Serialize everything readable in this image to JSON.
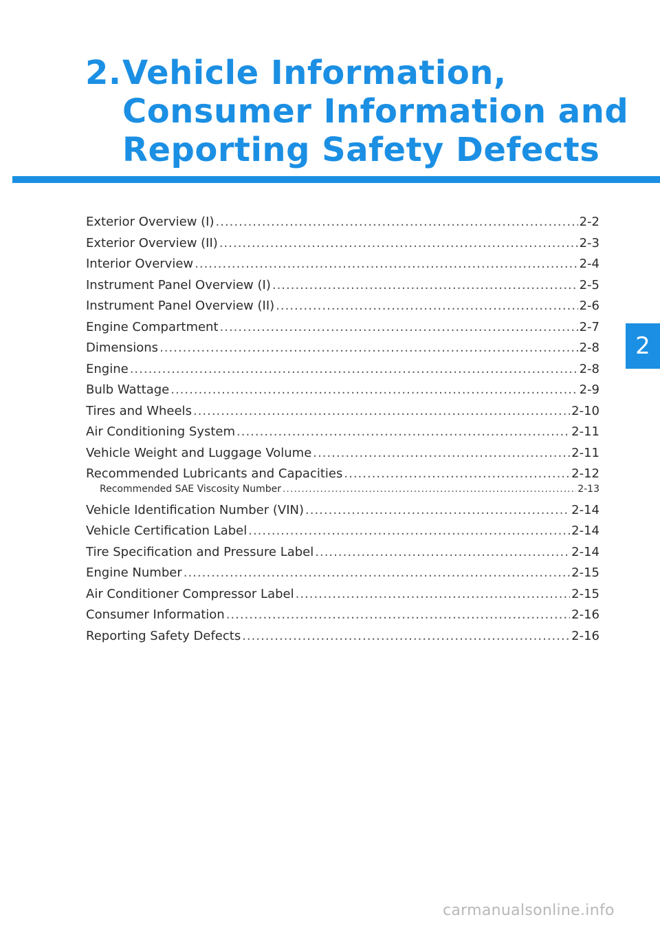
{
  "header": {
    "number": "2.",
    "title_lines": [
      "Vehicle Information,",
      "Consumer Information and",
      "Reporting Safety Defects"
    ]
  },
  "toc": [
    {
      "label": "Exterior Overview (I)",
      "page": "2-2"
    },
    {
      "label": "Exterior Overview (II)",
      "page": "2-3"
    },
    {
      "label": "Interior Overview",
      "page": "2-4"
    },
    {
      "label": "Instrument Panel Overview (I)",
      "page": "2-5"
    },
    {
      "label": "Instrument Panel Overview (II)",
      "page": "2-6"
    },
    {
      "label": "Engine Compartment",
      "page": "2-7"
    },
    {
      "label": "Dimensions",
      "page": "2-8"
    },
    {
      "label": "Engine",
      "page": "2-8"
    },
    {
      "label": "Bulb Wattage",
      "page": "2-9"
    },
    {
      "label": "Tires and Wheels",
      "page": "2-10"
    },
    {
      "label": "Air Conditioning System",
      "page": "2-11"
    },
    {
      "label": "Vehicle Weight and Luggage Volume",
      "page": "2-11"
    },
    {
      "label": "Recommended Lubricants and Capacities",
      "page": "2-12"
    },
    {
      "label": "Recommended SAE Viscosity Number",
      "page": "2-13"
    },
    {
      "label": "Vehicle Identification Number (VIN)",
      "page": "2-14"
    },
    {
      "label": "Vehicle Certification Label",
      "page": "2-14"
    },
    {
      "label": "Tire Specification and Pressure Label",
      "page": "2-14"
    },
    {
      "label": "Engine Number",
      "page": "2-15"
    },
    {
      "label": "Air Conditioner Compressor Label",
      "page": "2-15"
    },
    {
      "label": "Consumer Information",
      "page": "2-16"
    },
    {
      "label": "Reporting Safety Defects",
      "page": "2-16"
    }
  ],
  "side_tab": {
    "label": "2"
  },
  "watermark": "carmanualsonline.info",
  "colors": {
    "accent": "#1b8fe3"
  }
}
